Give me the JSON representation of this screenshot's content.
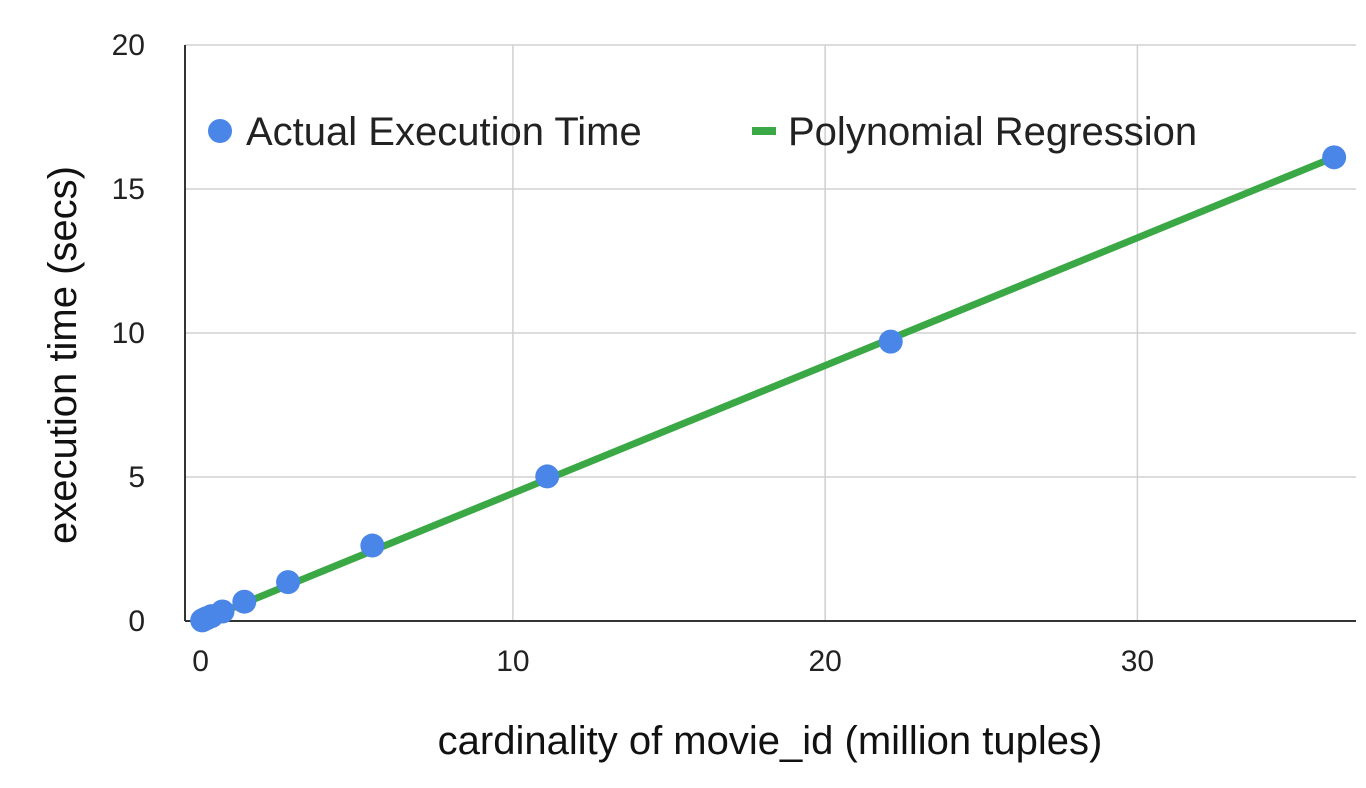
{
  "chart_data": {
    "type": "scatter",
    "title": "",
    "xlabel": "cardinality of movie_id (million tuples)",
    "ylabel": "execution time (secs)",
    "xlim": [
      -0.5,
      37
    ],
    "ylim": [
      0,
      20
    ],
    "x_ticks": [
      0,
      10,
      20,
      30
    ],
    "y_ticks": [
      0,
      5,
      10,
      15,
      20
    ],
    "grid": true,
    "legend_position": "top",
    "series": [
      {
        "name": "Actual Execution Time",
        "kind": "scatter",
        "color": "#4a86e8",
        "x": [
          0.05,
          0.1,
          0.2,
          0.35,
          0.7,
          1.4,
          2.8,
          5.5,
          11.1,
          22.1,
          36.3
        ],
        "y": [
          0.02,
          0.05,
          0.1,
          0.17,
          0.33,
          0.67,
          1.35,
          2.62,
          5.02,
          9.7,
          16.1
        ]
      },
      {
        "name": "Polynomial Regression",
        "kind": "line",
        "color": "#3aa845",
        "x": [
          0,
          36.3
        ],
        "y": [
          0,
          16.1
        ]
      }
    ]
  }
}
